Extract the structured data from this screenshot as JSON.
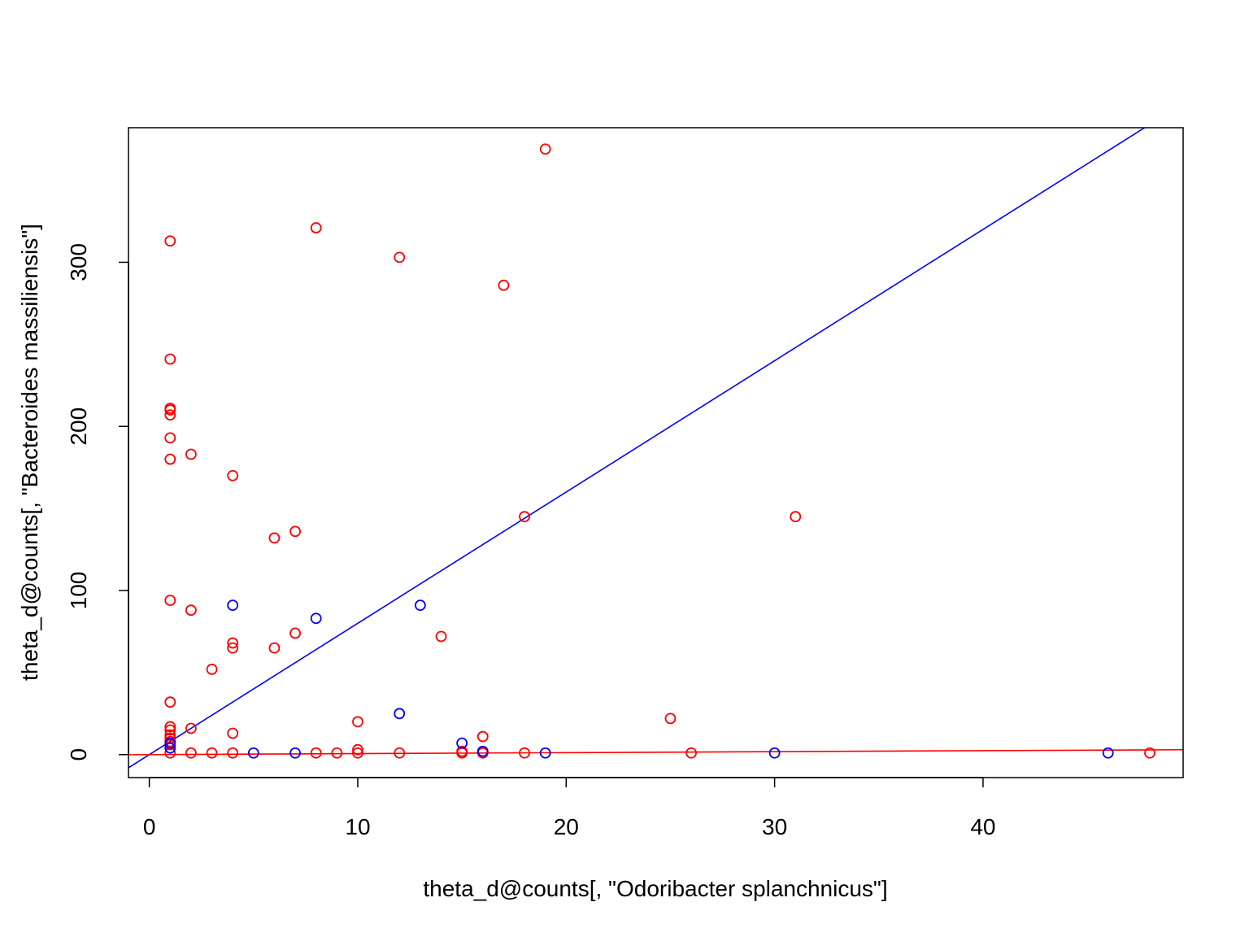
{
  "chart_data": {
    "type": "scatter",
    "title": "",
    "xlabel": "theta_d@counts[, \"Odoribacter splanchnicus\"]",
    "ylabel": "theta_d@counts[, \"Bacteroides massiliensis\"]",
    "xlim": [
      -1.0,
      49.6
    ],
    "ylim": [
      -14,
      382
    ],
    "x_ticks": [
      0,
      10,
      20,
      30,
      40
    ],
    "y_ticks": [
      0,
      100,
      200,
      300
    ],
    "grid": false,
    "legend": "none",
    "series": [
      {
        "color": "#ff0000",
        "points": [
          [
            1,
            313
          ],
          [
            1,
            241
          ],
          [
            1,
            211
          ],
          [
            1,
            210
          ],
          [
            1,
            207
          ],
          [
            1,
            193
          ],
          [
            1,
            180
          ],
          [
            1,
            94
          ],
          [
            1,
            32
          ],
          [
            1,
            17
          ],
          [
            1,
            15
          ],
          [
            1,
            12
          ],
          [
            1,
            10
          ],
          [
            1,
            8
          ],
          [
            1,
            6
          ],
          [
            1,
            4
          ],
          [
            1,
            1
          ],
          [
            2,
            183
          ],
          [
            2,
            88
          ],
          [
            2,
            16
          ],
          [
            2,
            1
          ],
          [
            3,
            52
          ],
          [
            3,
            1
          ],
          [
            4,
            170
          ],
          [
            4,
            68
          ],
          [
            4,
            65
          ],
          [
            4,
            13
          ],
          [
            4,
            1
          ],
          [
            6,
            132
          ],
          [
            6,
            65
          ],
          [
            7,
            136
          ],
          [
            7,
            74
          ],
          [
            8,
            321
          ],
          [
            8,
            1
          ],
          [
            9,
            1
          ],
          [
            10,
            20
          ],
          [
            10,
            3
          ],
          [
            10,
            1
          ],
          [
            12,
            303
          ],
          [
            12,
            1
          ],
          [
            14,
            72
          ],
          [
            15,
            2
          ],
          [
            15,
            1
          ],
          [
            16,
            11
          ],
          [
            16,
            2
          ],
          [
            16,
            1
          ],
          [
            17,
            286
          ],
          [
            18,
            145
          ],
          [
            18,
            1
          ],
          [
            19,
            369
          ],
          [
            25,
            22
          ],
          [
            26,
            1
          ],
          [
            31,
            145
          ],
          [
            48,
            1
          ]
        ]
      },
      {
        "color": "#0000ff",
        "points": [
          [
            1,
            7
          ],
          [
            1,
            4
          ],
          [
            4,
            91
          ],
          [
            5,
            1
          ],
          [
            7,
            1
          ],
          [
            8,
            83
          ],
          [
            12,
            25
          ],
          [
            13,
            91
          ],
          [
            15,
            7
          ],
          [
            16,
            2
          ],
          [
            19,
            1
          ],
          [
            30,
            1
          ],
          [
            46,
            1
          ]
        ]
      }
    ],
    "lines": [
      {
        "color": "#0000ff",
        "intercept": 0,
        "slope": 8.0
      },
      {
        "color": "#ff0000",
        "intercept": 0,
        "slope": 0.06
      }
    ]
  }
}
